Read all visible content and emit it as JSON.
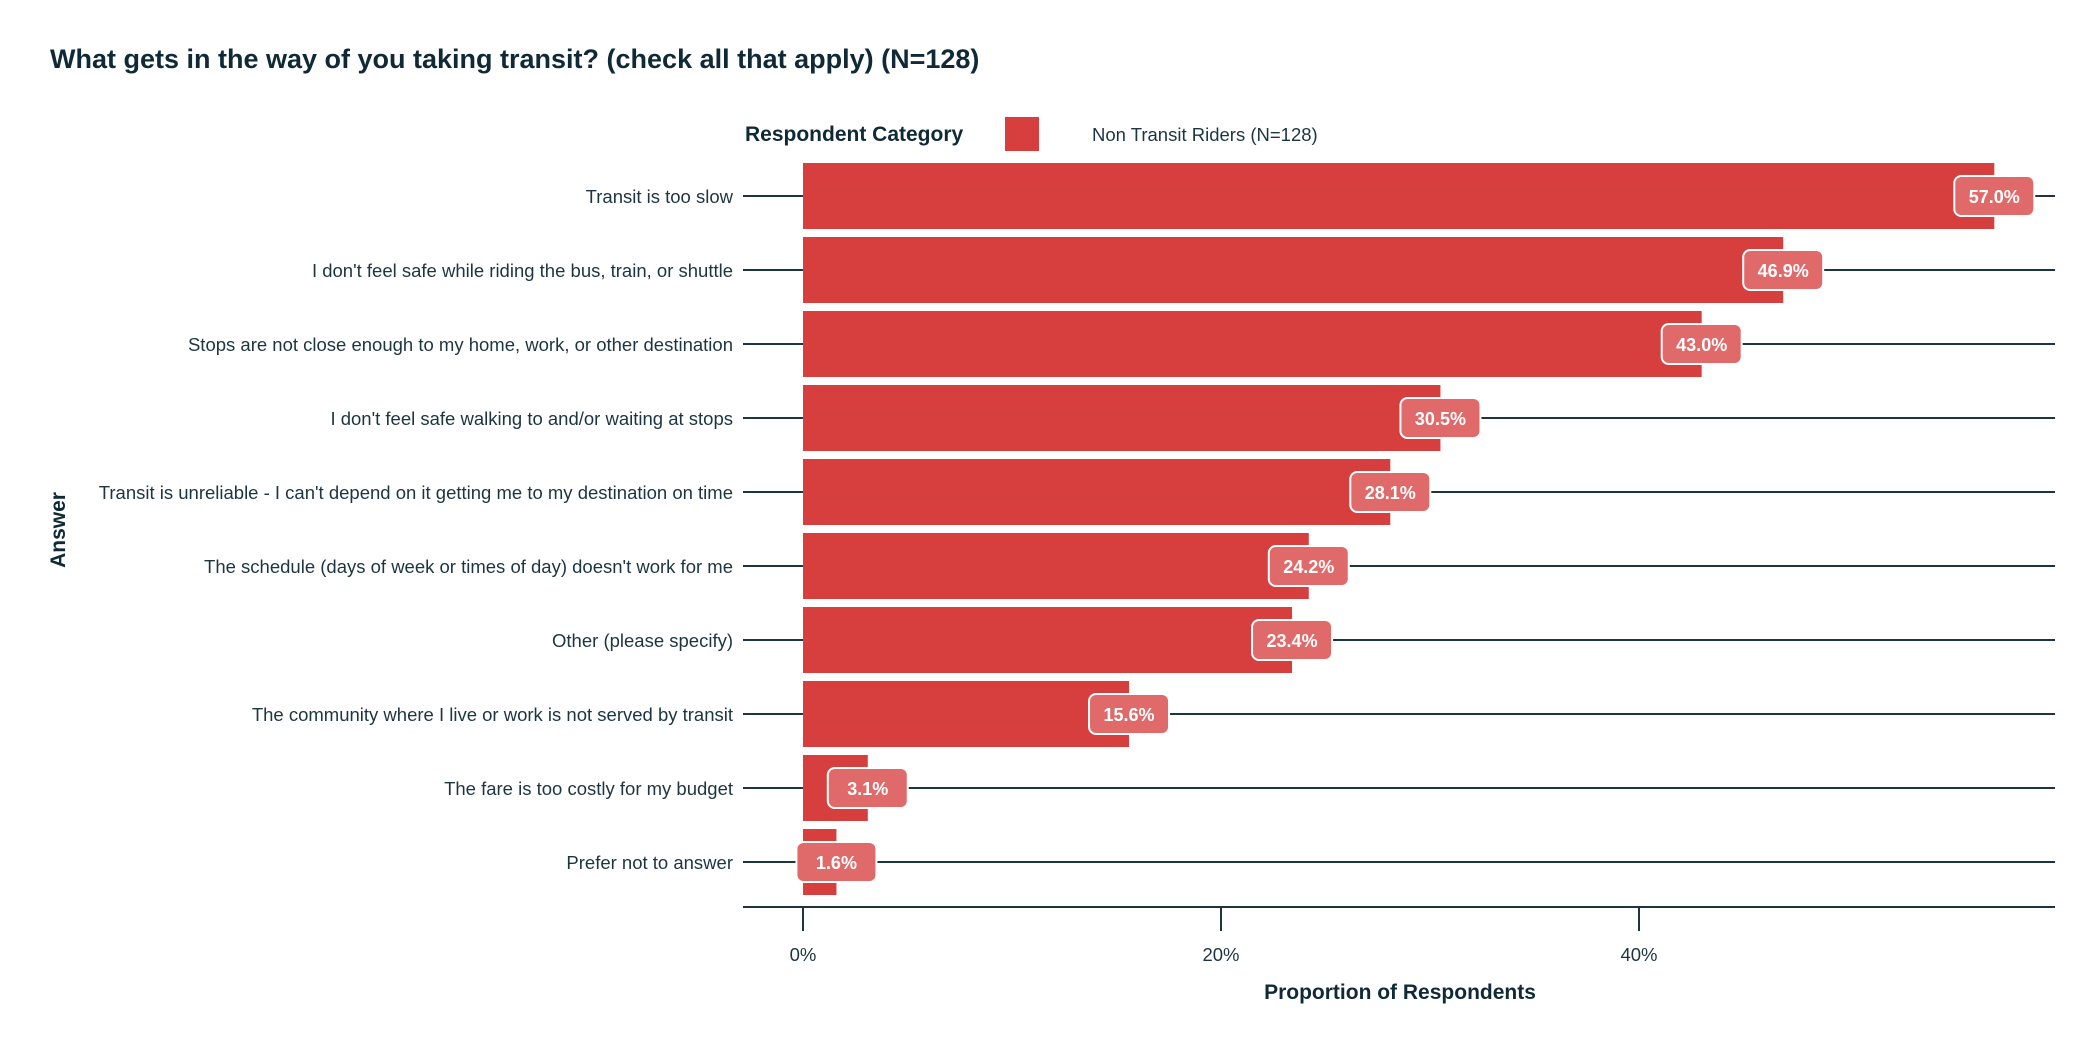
{
  "chart_data": {
    "type": "bar",
    "orientation": "horizontal",
    "title": "What gets in the way of you taking transit? (check all that apply) (N=128)",
    "xlabel": "Proportion of Respondents",
    "ylabel": "Answer",
    "xlim": [
      0,
      60
    ],
    "x_ticks": [
      0,
      20,
      40
    ],
    "x_tick_labels": [
      "0%",
      "20%",
      "40%"
    ],
    "grid": false,
    "legend": {
      "title": "Respondent Category",
      "placement": "top",
      "entries": [
        {
          "name": "Non Transit Riders (N=128)",
          "color": "#d73e3e"
        }
      ]
    },
    "categories": [
      "Transit is too slow",
      "I don't feel safe while riding the bus, train, or shuttle",
      "Stops are not close enough to my home, work, or other destination",
      "I don't feel safe walking to and/or waiting at stops",
      "Transit is unreliable - I can't depend on it getting me to my destination on time",
      "The schedule (days of week or times of day) doesn't work for me",
      "Other (please specify)",
      "The community where I live or work is not served by transit",
      "The fare is too costly for my budget",
      "Prefer not to answer"
    ],
    "series": [
      {
        "name": "Non Transit Riders (N=128)",
        "color": "#d73e3e",
        "values": [
          57.0,
          46.9,
          43.0,
          30.5,
          28.1,
          24.2,
          23.4,
          15.6,
          3.1,
          1.6
        ],
        "labels": [
          "57.0%",
          "46.9%",
          "43.0%",
          "30.5%",
          "28.1%",
          "24.2%",
          "23.4%",
          "15.6%",
          "3.1%",
          "1.6%"
        ]
      }
    ]
  }
}
